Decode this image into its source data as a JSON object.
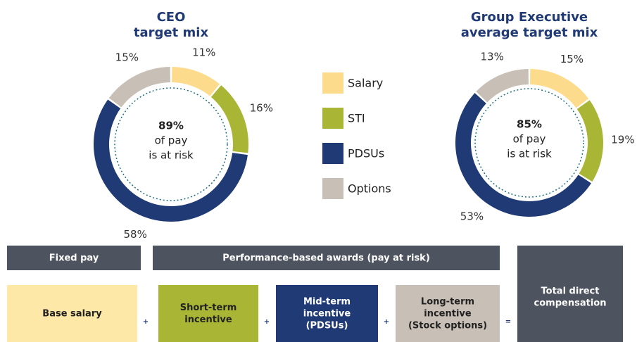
{
  "chart_data": [
    {
      "type": "donut",
      "title": [
        "CEO",
        "target mix"
      ],
      "categories": [
        "Salary",
        "STI",
        "PDSUs",
        "Options"
      ],
      "values": [
        11,
        16,
        58,
        15
      ],
      "value_labels": [
        "11%",
        "16%",
        "58%",
        "15%"
      ],
      "colors": [
        "#fcdc8c",
        "#a9b534",
        "#1f3a74",
        "#c8c0b6"
      ],
      "center_text": [
        "89%",
        "of pay",
        "is at risk"
      ]
    },
    {
      "type": "donut",
      "title": [
        "Group Executive",
        "average target mix"
      ],
      "categories": [
        "Salary",
        "STI",
        "PDSUs",
        "Options"
      ],
      "values": [
        15,
        19,
        53,
        13
      ],
      "value_labels": [
        "15%",
        "19%",
        "53%",
        "13%"
      ],
      "colors": [
        "#fcdc8c",
        "#a9b534",
        "#1f3a74",
        "#c8c0b6"
      ],
      "center_text": [
        "85%",
        "of pay",
        "is at risk"
      ]
    }
  ],
  "diagram": {
    "headers": [
      "Fixed pay",
      "Performance-based awards (pay at risk)"
    ],
    "total": [
      "Total direct",
      "compensation"
    ],
    "components": [
      [
        "Base salary"
      ],
      [
        "Short-term",
        "incentive"
      ],
      [
        "Mid-term",
        "incentive",
        "(PDSUs)"
      ],
      [
        "Long-term",
        "incentive",
        "(Stock options)"
      ]
    ],
    "operators": [
      "+",
      "+",
      "+",
      "="
    ]
  }
}
